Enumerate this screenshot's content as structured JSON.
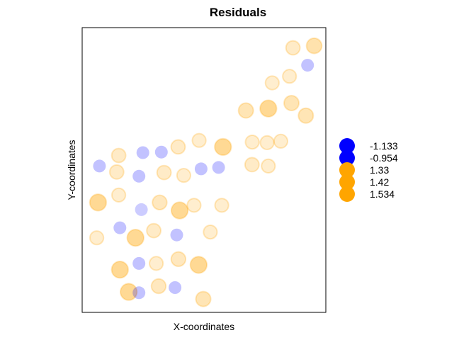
{
  "chart_data": {
    "type": "scatter",
    "title": "Residuals",
    "xlabel": "X-coordinates",
    "ylabel": "Y-coordinates",
    "xlim": [
      0,
      10
    ],
    "ylim": [
      0,
      10
    ],
    "axes_ticks_shown": false,
    "grid": false,
    "legend_position": "right",
    "legend": {
      "entries": [
        {
          "label": "-1.133",
          "color": "#0000ff"
        },
        {
          "label": "-0.954",
          "color": "#0000ff"
        },
        {
          "label": "1.33",
          "color": "#ffa500"
        },
        {
          "label": "1.42",
          "color": "#ffa500"
        },
        {
          "label": "1.534",
          "color": "#ffa500"
        }
      ]
    },
    "point_style": {
      "negative_color": "#0000ff",
      "positive_color": "#ffa500",
      "note": "marker size and opacity scale with residual magnitude"
    },
    "points": [
      {
        "x": 8.65,
        "y": 9.29,
        "r": 0.3
      },
      {
        "x": 9.52,
        "y": 9.36,
        "r": 0.6
      },
      {
        "x": 9.25,
        "y": 8.68,
        "r": -0.6
      },
      {
        "x": 8.51,
        "y": 8.29,
        "r": 0.2
      },
      {
        "x": 7.8,
        "y": 8.06,
        "r": 0.2
      },
      {
        "x": 8.59,
        "y": 7.35,
        "r": 0.5
      },
      {
        "x": 6.72,
        "y": 7.09,
        "r": 0.5
      },
      {
        "x": 7.64,
        "y": 7.16,
        "r": 0.9
      },
      {
        "x": 9.18,
        "y": 6.91,
        "r": 0.5
      },
      {
        "x": 6.98,
        "y": 5.98,
        "r": 0.2
      },
      {
        "x": 7.59,
        "y": 5.96,
        "r": 0.2
      },
      {
        "x": 8.15,
        "y": 6.01,
        "r": 0.2
      },
      {
        "x": 5.78,
        "y": 5.81,
        "r": 0.9
      },
      {
        "x": 4.8,
        "y": 6.04,
        "r": 0.2
      },
      {
        "x": 3.94,
        "y": 5.81,
        "r": 0.3
      },
      {
        "x": 3.25,
        "y": 5.63,
        "r": -0.6
      },
      {
        "x": 2.49,
        "y": 5.61,
        "r": -0.6
      },
      {
        "x": 1.5,
        "y": 5.51,
        "r": 0.3
      },
      {
        "x": 0.71,
        "y": 5.14,
        "r": -0.6
      },
      {
        "x": 1.42,
        "y": 4.93,
        "r": 0.3
      },
      {
        "x": 2.33,
        "y": 4.78,
        "r": -0.6
      },
      {
        "x": 3.36,
        "y": 4.91,
        "r": 0.3
      },
      {
        "x": 4.17,
        "y": 4.81,
        "r": 0.2
      },
      {
        "x": 4.88,
        "y": 5.04,
        "r": -0.6
      },
      {
        "x": 5.6,
        "y": 5.09,
        "r": -0.6
      },
      {
        "x": 6.97,
        "y": 5.19,
        "r": 0.3
      },
      {
        "x": 7.64,
        "y": 5.14,
        "r": 0.2
      },
      {
        "x": 1.5,
        "y": 4.12,
        "r": 0.2
      },
      {
        "x": 0.65,
        "y": 3.86,
        "r": 0.9
      },
      {
        "x": 2.43,
        "y": 3.61,
        "r": -0.3
      },
      {
        "x": 3.18,
        "y": 3.86,
        "r": 0.4
      },
      {
        "x": 4.0,
        "y": 3.58,
        "r": 0.9
      },
      {
        "x": 4.59,
        "y": 3.76,
        "r": 0.2
      },
      {
        "x": 5.73,
        "y": 3.76,
        "r": 0.2
      },
      {
        "x": 1.55,
        "y": 2.97,
        "r": -0.6
      },
      {
        "x": 0.6,
        "y": 2.62,
        "r": 0.2
      },
      {
        "x": 2.19,
        "y": 2.62,
        "r": 0.9
      },
      {
        "x": 2.94,
        "y": 2.87,
        "r": 0.3
      },
      {
        "x": 3.88,
        "y": 2.72,
        "r": -0.6
      },
      {
        "x": 5.26,
        "y": 2.82,
        "r": 0.2
      },
      {
        "x": 2.33,
        "y": 1.72,
        "r": -0.6
      },
      {
        "x": 3.04,
        "y": 1.72,
        "r": 0.2
      },
      {
        "x": 3.95,
        "y": 1.87,
        "r": 0.4
      },
      {
        "x": 4.78,
        "y": 1.67,
        "r": 0.9
      },
      {
        "x": 1.55,
        "y": 1.5,
        "r": 0.9
      },
      {
        "x": 3.81,
        "y": 0.87,
        "r": -0.6
      },
      {
        "x": 3.14,
        "y": 0.92,
        "r": 0.4
      },
      {
        "x": 1.91,
        "y": 0.72,
        "r": 0.9
      },
      {
        "x": 2.33,
        "y": 0.69,
        "r": -0.6
      },
      {
        "x": 4.97,
        "y": 0.47,
        "r": 0.5
      }
    ]
  }
}
